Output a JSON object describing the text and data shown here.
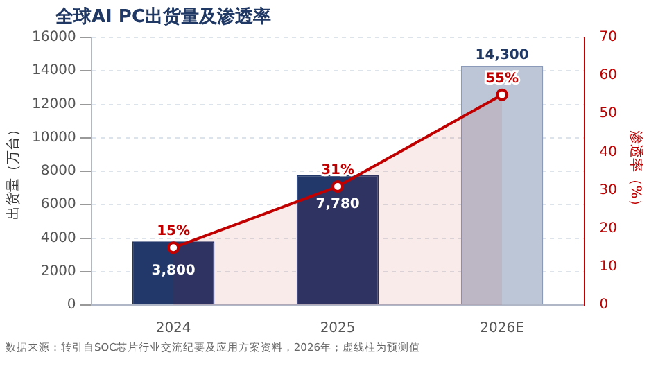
{
  "chart_data": {
    "type": "bar",
    "title": "全球AI PC出货量及渗透率",
    "ylabel": "出货量（万台）",
    "y2label": "渗透率（%）",
    "annotations": [
      "数据来源：转引自SOC芯片行业交流纪要及应用方案资料，2026年；虚线柱为预测值"
    ],
    "categories": [
      "2024",
      "2025",
      "2026E"
    ],
    "series": [
      {
        "colors": [
          "#22386a",
          "#22386a",
          "#bcc6d6"
        ],
        "values": [
          3800,
          7780,
          14300
        ],
        "value_labels": [
          "3,800",
          "7,780",
          "14,300"
        ]
      },
      {
        "type": "area",
        "axis": "y2",
        "color": "#c00000",
        "values": [
          15,
          31,
          55
        ],
        "value_labels": [
          "15%",
          "31%",
          "55%"
        ]
      }
    ],
    "ylim": [
      0,
      16000
    ],
    "yticks": [
      0,
      2000,
      4000,
      6000,
      8000,
      10000,
      12000,
      14000,
      16000
    ],
    "y2lim": [
      0,
      70
    ],
    "y2ticks": [
      0,
      10,
      20,
      30,
      40,
      50,
      60,
      70
    ],
    "grid": "y",
    "legend": false,
    "marker": "circle"
  }
}
